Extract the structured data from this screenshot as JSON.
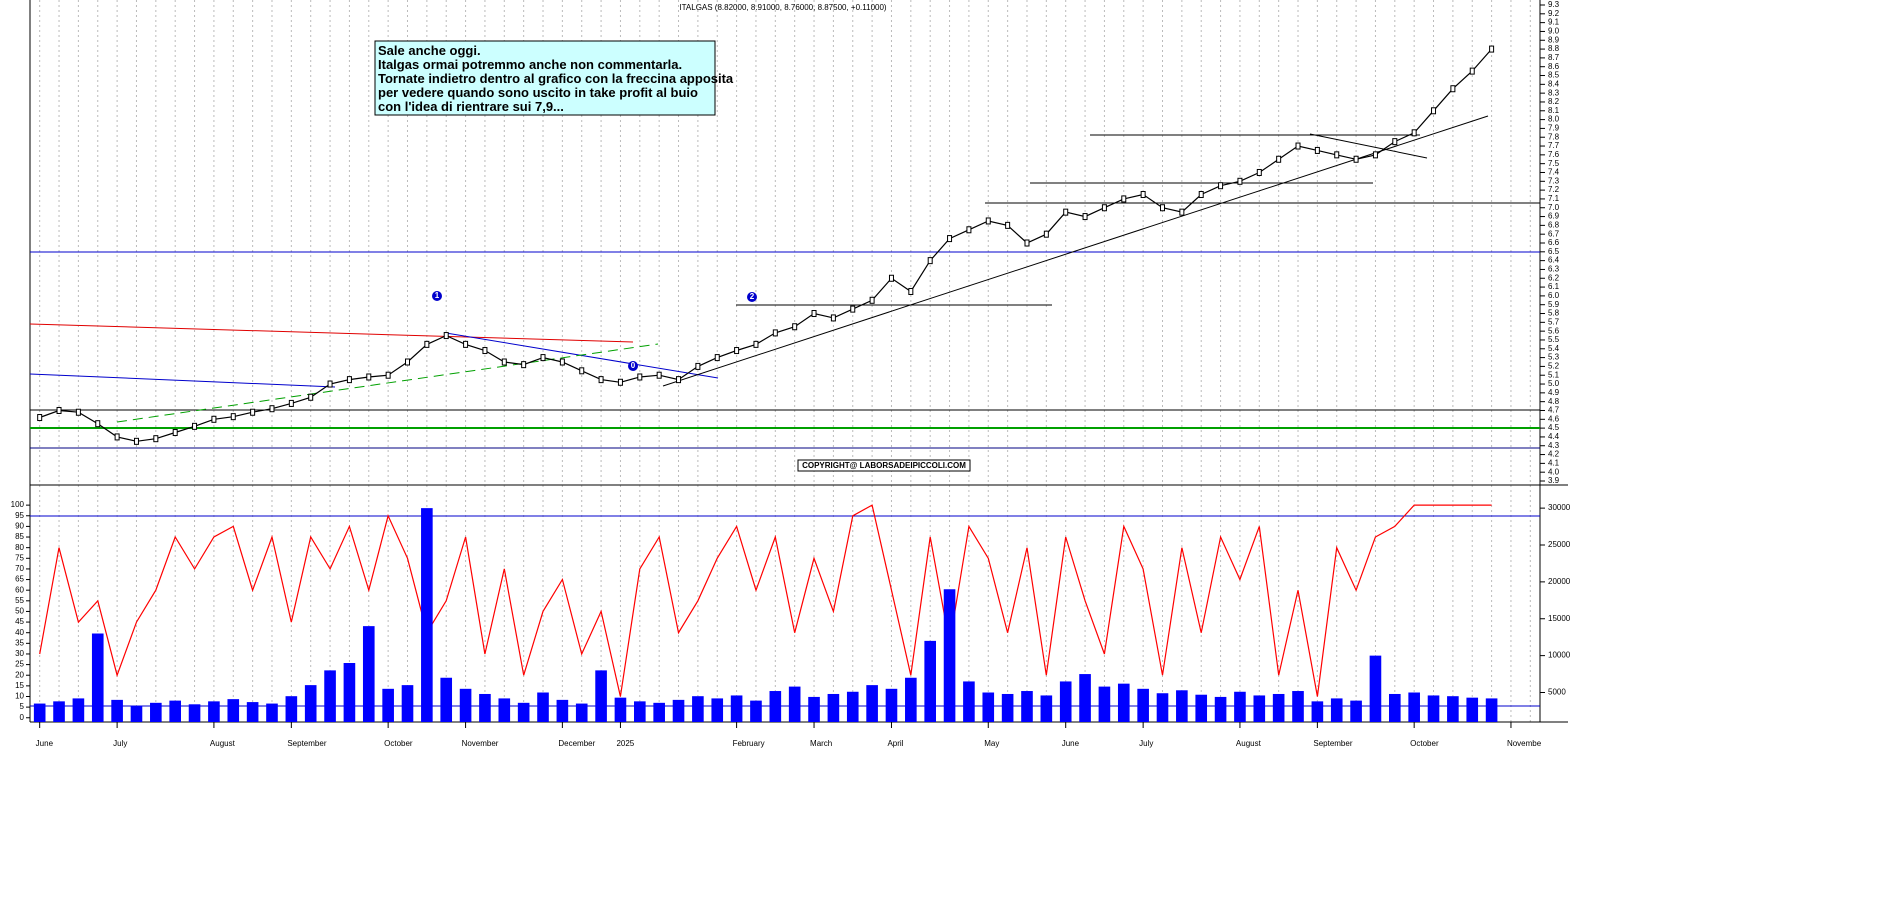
{
  "chart_data": [
    {
      "type": "line",
      "title": "ITALGAS (8.82000, 8.91000, 8.76000, 8.87500, +0.11000)",
      "categories": [
        "June",
        null,
        null,
        null,
        "July",
        null,
        null,
        null,
        null,
        "August",
        null,
        null,
        null,
        "September",
        null,
        null,
        null,
        null,
        "October",
        null,
        null,
        null,
        "November",
        null,
        null,
        null,
        null,
        "December",
        null,
        null,
        "2025",
        null,
        null,
        null,
        null,
        null,
        "February",
        null,
        null,
        null,
        "March",
        null,
        null,
        null,
        "April",
        null,
        null,
        null,
        null,
        "May",
        null,
        null,
        null,
        "June",
        null,
        null,
        null,
        "July",
        null,
        null,
        null,
        null,
        "August",
        null,
        null,
        null,
        "September",
        null,
        null,
        null,
        null,
        "October",
        null,
        null,
        null,
        null,
        "Novembe",
        null
      ],
      "series": [
        {
          "color": "#000000",
          "values": [
            4.62,
            4.7,
            4.68,
            4.55,
            4.4,
            4.35,
            4.38,
            4.45,
            4.52,
            4.6,
            4.63,
            4.68,
            4.72,
            4.78,
            4.85,
            5.0,
            5.05,
            5.08,
            5.1,
            5.25,
            5.45,
            5.55,
            5.45,
            5.38,
            5.25,
            5.22,
            5.3,
            5.25,
            5.15,
            5.05,
            5.02,
            5.08,
            5.1,
            5.05,
            5.2,
            5.3,
            5.38,
            5.45,
            5.58,
            5.65,
            5.8,
            5.75,
            5.85,
            5.95,
            6.2,
            6.05,
            6.4,
            6.65,
            6.75,
            6.85,
            6.8,
            6.6,
            6.7,
            6.95,
            6.9,
            7.0,
            7.1,
            7.15,
            7.0,
            6.95,
            7.15,
            7.25,
            7.3,
            7.4,
            7.55,
            7.7,
            7.65,
            7.6,
            7.55,
            7.6,
            7.75,
            7.85,
            8.1,
            8.35,
            8.55,
            8.8,
            null,
            null
          ]
        }
      ],
      "ylim": [
        3.9,
        9.3
      ],
      "yticks": [
        3.9,
        {
          "value": 4,
          "label": "4.0"
        },
        4.1,
        4.2,
        4.3,
        4.4,
        4.5,
        4.6,
        4.7,
        4.8,
        4.9,
        {
          "value": 5,
          "label": "5.0"
        },
        5.1,
        5.2,
        5.3,
        5.4,
        5.5,
        5.6,
        5.7,
        5.8,
        5.9,
        {
          "value": 6,
          "label": "6.0"
        },
        6.1,
        6.2,
        6.3,
        6.4,
        6.5,
        6.6,
        6.7,
        6.8,
        6.9,
        {
          "value": 7,
          "label": "7.0"
        },
        7.1,
        7.2,
        7.3,
        7.4,
        7.5,
        7.6,
        7.7,
        7.8,
        7.9,
        {
          "value": 8,
          "label": "8.0"
        },
        8.1,
        8.2,
        8.3,
        8.4,
        8.5,
        8.6,
        8.7,
        8.8,
        8.9,
        {
          "value": 9,
          "label": "9.0"
        },
        9.1,
        9.2,
        9.3
      ],
      "annotation": [
        "Sale anche oggi.",
        "Italgas ormai potremmo anche non commentarla.",
        "Tornate indietro dentro al grafico con la freccina apposita",
        "per vedere quando sono uscito in take profit al buio",
        "con l'idea di rientrare sui 7,9..."
      ],
      "markers": [
        "1",
        "2",
        "0"
      ],
      "copyright": "COPYRIGHT@ LABORSADEIPICCOLI.COM"
    },
    {
      "type": "line",
      "series": [
        {
          "color": "#ff0000",
          "values": [
            30,
            80,
            45,
            55,
            20,
            45,
            60,
            85,
            70,
            85,
            90,
            60,
            85,
            45,
            85,
            70,
            90,
            60,
            95,
            75,
            40,
            55,
            85,
            30,
            70,
            20,
            50,
            65,
            30,
            50,
            10,
            70,
            85,
            40,
            55,
            75,
            90,
            60,
            85,
            40,
            75,
            50,
            95,
            100,
            60,
            20,
            85,
            35,
            90,
            75,
            40,
            80,
            20,
            85,
            55,
            30,
            90,
            70,
            20,
            80,
            40,
            85,
            65,
            90,
            20,
            60,
            10,
            80,
            60,
            85,
            90,
            100,
            100,
            100,
            100,
            100,
            null,
            null
          ]
        },
        {
          "color": "#0000ff",
          "axis": "y2",
          "type": "bar",
          "values": [
            3500,
            3800,
            4200,
            13000,
            4000,
            3200,
            3600,
            3900,
            3400,
            3800,
            4100,
            3700,
            3500,
            4500,
            6000,
            8000,
            9000,
            14000,
            5500,
            6000,
            30000,
            7000,
            5500,
            4800,
            4200,
            3600,
            5000,
            4000,
            3500,
            8000,
            4300,
            3800,
            3600,
            4000,
            4500,
            4200,
            4600,
            3900,
            5200,
            5800,
            4400,
            4800,
            5100,
            6000,
            5500,
            7000,
            12000,
            19000,
            6500,
            5000,
            4800,
            5200,
            4600,
            6500,
            7500,
            5800,
            6200,
            5500,
            4900,
            5300,
            4700,
            4400,
            5100,
            4600,
            4800,
            5200,
            3800,
            4200,
            3900,
            10000,
            4800,
            5000,
            4600,
            4500,
            4300,
            4200,
            null,
            null
          ]
        }
      ],
      "ylim": [
        -2,
        109
      ],
      "yticks": [
        0,
        5,
        10,
        15,
        20,
        25,
        30,
        35,
        40,
        45,
        50,
        55,
        60,
        65,
        70,
        75,
        80,
        85,
        90,
        95,
        100
      ],
      "y2lim": [
        1000,
        33000
      ],
      "y2ticks": [
        5000,
        10000,
        15000,
        20000,
        25000,
        30000
      ]
    }
  ]
}
